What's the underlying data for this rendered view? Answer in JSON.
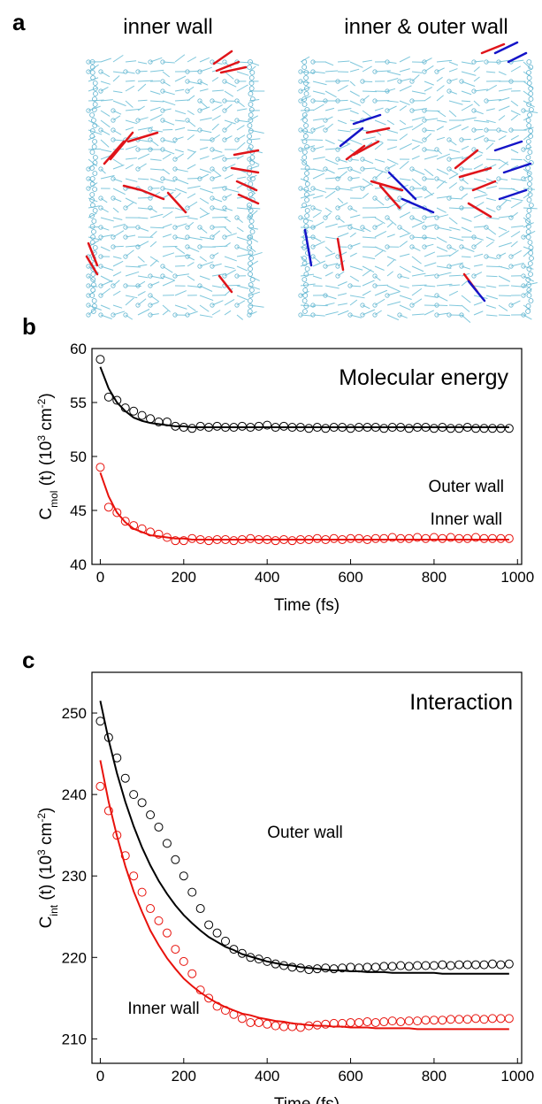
{
  "panel_a": {
    "label": "a",
    "titles": [
      "inner wall",
      "inner & outer wall"
    ]
  },
  "chart_data": [
    {
      "type": "scatter",
      "panel_label": "b",
      "annotation": "Molecular energy",
      "x_label": "Time (fs)",
      "y_label": [
        {
          "text": "C"
        },
        {
          "text": "mol",
          "sub": true
        },
        {
          "text": " (t) (10"
        },
        {
          "text": "3",
          "sup": true
        },
        {
          "text": " cm"
        },
        {
          "text": "-2",
          "sup": true
        },
        {
          "text": ")"
        }
      ],
      "xlim": [
        -20,
        1010
      ],
      "xticks": [
        0,
        200,
        400,
        600,
        800,
        1000
      ],
      "ylim": [
        40,
        60
      ],
      "yticks": [
        40,
        45,
        50,
        55,
        60
      ],
      "x": [
        0,
        20,
        40,
        60,
        80,
        100,
        120,
        140,
        160,
        180,
        200,
        220,
        240,
        260,
        280,
        300,
        320,
        340,
        360,
        380,
        400,
        420,
        440,
        460,
        480,
        500,
        520,
        540,
        560,
        580,
        600,
        620,
        640,
        660,
        680,
        700,
        720,
        740,
        760,
        780,
        800,
        820,
        840,
        860,
        880,
        900,
        920,
        940,
        960,
        980
      ],
      "series": [
        {
          "name": "Outer wall",
          "color": "#000000",
          "values": [
            59,
            55.5,
            55.2,
            54.5,
            54.2,
            53.8,
            53.5,
            53.2,
            53.2,
            52.8,
            52.7,
            52.6,
            52.8,
            52.7,
            52.8,
            52.7,
            52.7,
            52.8,
            52.7,
            52.8,
            52.9,
            52.7,
            52.8,
            52.7,
            52.7,
            52.6,
            52.7,
            52.6,
            52.7,
            52.7,
            52.6,
            52.7,
            52.7,
            52.7,
            52.6,
            52.7,
            52.7,
            52.6,
            52.7,
            52.7,
            52.6,
            52.7,
            52.6,
            52.6,
            52.7,
            52.6,
            52.6,
            52.6,
            52.6,
            52.6
          ],
          "fit": [
            58.3,
            56.3,
            55.0,
            54.2,
            53.6,
            53.3,
            53.1,
            53.0,
            52.9,
            52.8,
            52.8,
            52.7,
            52.7,
            52.7,
            52.7,
            52.7,
            52.7,
            52.7,
            52.7,
            52.7,
            52.7,
            52.7,
            52.7,
            52.7,
            52.7,
            52.7,
            52.7,
            52.7,
            52.7,
            52.7,
            52.7,
            52.7,
            52.7,
            52.7,
            52.7,
            52.7,
            52.7,
            52.7,
            52.7,
            52.7,
            52.7,
            52.7,
            52.7,
            52.7,
            52.7,
            52.7,
            52.7,
            52.7,
            52.7,
            52.7
          ]
        },
        {
          "name": "Inner wall",
          "color": "#e8120c",
          "values": [
            49,
            45.3,
            44.8,
            44.0,
            43.6,
            43.3,
            43.0,
            42.8,
            42.5,
            42.2,
            42.2,
            42.4,
            42.3,
            42.2,
            42.3,
            42.3,
            42.2,
            42.3,
            42.4,
            42.3,
            42.3,
            42.2,
            42.3,
            42.2,
            42.3,
            42.3,
            42.4,
            42.3,
            42.4,
            42.3,
            42.4,
            42.4,
            42.3,
            42.4,
            42.4,
            42.5,
            42.4,
            42.4,
            42.5,
            42.4,
            42.5,
            42.4,
            42.5,
            42.4,
            42.4,
            42.5,
            42.4,
            42.4,
            42.4,
            42.4
          ],
          "fit": [
            48.5,
            46.3,
            44.8,
            43.9,
            43.3,
            43.0,
            42.7,
            42.6,
            42.5,
            42.4,
            42.4,
            42.3,
            42.3,
            42.3,
            42.3,
            42.3,
            42.3,
            42.3,
            42.3,
            42.3,
            42.3,
            42.3,
            42.3,
            42.3,
            42.3,
            42.3,
            42.3,
            42.3,
            42.3,
            42.3,
            42.3,
            42.3,
            42.3,
            42.3,
            42.3,
            42.3,
            42.3,
            42.3,
            42.3,
            42.3,
            42.3,
            42.3,
            42.3,
            42.3,
            42.3,
            42.3,
            42.3,
            42.3,
            42.3,
            42.3
          ]
        }
      ]
    },
    {
      "type": "scatter",
      "panel_label": "c",
      "annotation": "Interaction",
      "x_label": "Time (fs)",
      "y_label": [
        {
          "text": "C"
        },
        {
          "text": "int",
          "sub": true
        },
        {
          "text": " (t) (10"
        },
        {
          "text": "3",
          "sup": true
        },
        {
          "text": " cm"
        },
        {
          "text": "-2",
          "sup": true
        },
        {
          "text": ")"
        }
      ],
      "xlim": [
        -20,
        1010
      ],
      "xticks": [
        0,
        200,
        400,
        600,
        800,
        1000
      ],
      "ylim": [
        207,
        255
      ],
      "yticks": [
        210,
        220,
        230,
        240,
        250
      ],
      "x": [
        0,
        20,
        40,
        60,
        80,
        100,
        120,
        140,
        160,
        180,
        200,
        220,
        240,
        260,
        280,
        300,
        320,
        340,
        360,
        380,
        400,
        420,
        440,
        460,
        480,
        500,
        520,
        540,
        560,
        580,
        600,
        620,
        640,
        660,
        680,
        700,
        720,
        740,
        760,
        780,
        800,
        820,
        840,
        860,
        880,
        900,
        920,
        940,
        960,
        980
      ],
      "series": [
        {
          "name": "Outer wall",
          "color": "#000000",
          "values": [
            249,
            247,
            244.5,
            242,
            240,
            239,
            237.5,
            236,
            234,
            232,
            230,
            228,
            226,
            224,
            223,
            222,
            221,
            220.5,
            220,
            219.8,
            219.5,
            219.2,
            219,
            218.8,
            218.7,
            218.5,
            218.6,
            218.7,
            218.6,
            218.7,
            218.8,
            218.7,
            218.8,
            218.8,
            218.9,
            218.9,
            219,
            218.9,
            219,
            219,
            219,
            219.1,
            219,
            219.1,
            219.1,
            219.1,
            219.1,
            219.2,
            219.1,
            219.2
          ],
          "fit": [
            251.5,
            246.7,
            242.6,
            239.1,
            236.1,
            233.5,
            231.3,
            229.4,
            227.8,
            226.4,
            225.2,
            224.2,
            223.3,
            222.5,
            221.9,
            221.3,
            220.9,
            220.4,
            220.1,
            219.8,
            219.5,
            219.3,
            219.1,
            219.0,
            218.8,
            218.7,
            218.6,
            218.5,
            218.4,
            218.4,
            218.3,
            218.3,
            218.2,
            218.2,
            218.2,
            218.1,
            218.1,
            218.1,
            218.1,
            218.1,
            218.1,
            218.0,
            218.0,
            218.0,
            218.0,
            218.0,
            218.0,
            218.0,
            218.0,
            218.0
          ]
        },
        {
          "name": "Inner wall",
          "color": "#e8120c",
          "values": [
            241,
            238,
            235,
            232.5,
            230,
            228,
            226,
            224.5,
            223,
            221,
            219.5,
            218,
            216,
            215,
            214,
            213.5,
            213,
            212.5,
            212,
            212,
            211.8,
            211.6,
            211.5,
            211.5,
            211.4,
            211.6,
            211.7,
            211.8,
            211.9,
            211.9,
            212,
            212,
            212.1,
            212,
            212.1,
            212.2,
            212.1,
            212.2,
            212.2,
            212.3,
            212.3,
            212.3,
            212.4,
            212.4,
            212.4,
            212.5,
            212.4,
            212.5,
            212.5,
            212.5
          ],
          "fit": [
            244.2,
            239.1,
            234.9,
            231.2,
            228.1,
            225.6,
            223.3,
            221.5,
            219.9,
            218.6,
            217.4,
            216.5,
            215.7,
            215.0,
            214.4,
            213.9,
            213.5,
            213.1,
            212.9,
            212.6,
            212.4,
            212.2,
            212.1,
            211.9,
            211.8,
            211.7,
            211.6,
            211.6,
            211.5,
            211.5,
            211.4,
            211.4,
            211.4,
            211.3,
            211.3,
            211.3,
            211.3,
            211.3,
            211.2,
            211.2,
            211.2,
            211.2,
            211.2,
            211.2,
            211.2,
            211.2,
            211.2,
            211.2,
            211.2,
            211.2
          ]
        }
      ]
    }
  ]
}
